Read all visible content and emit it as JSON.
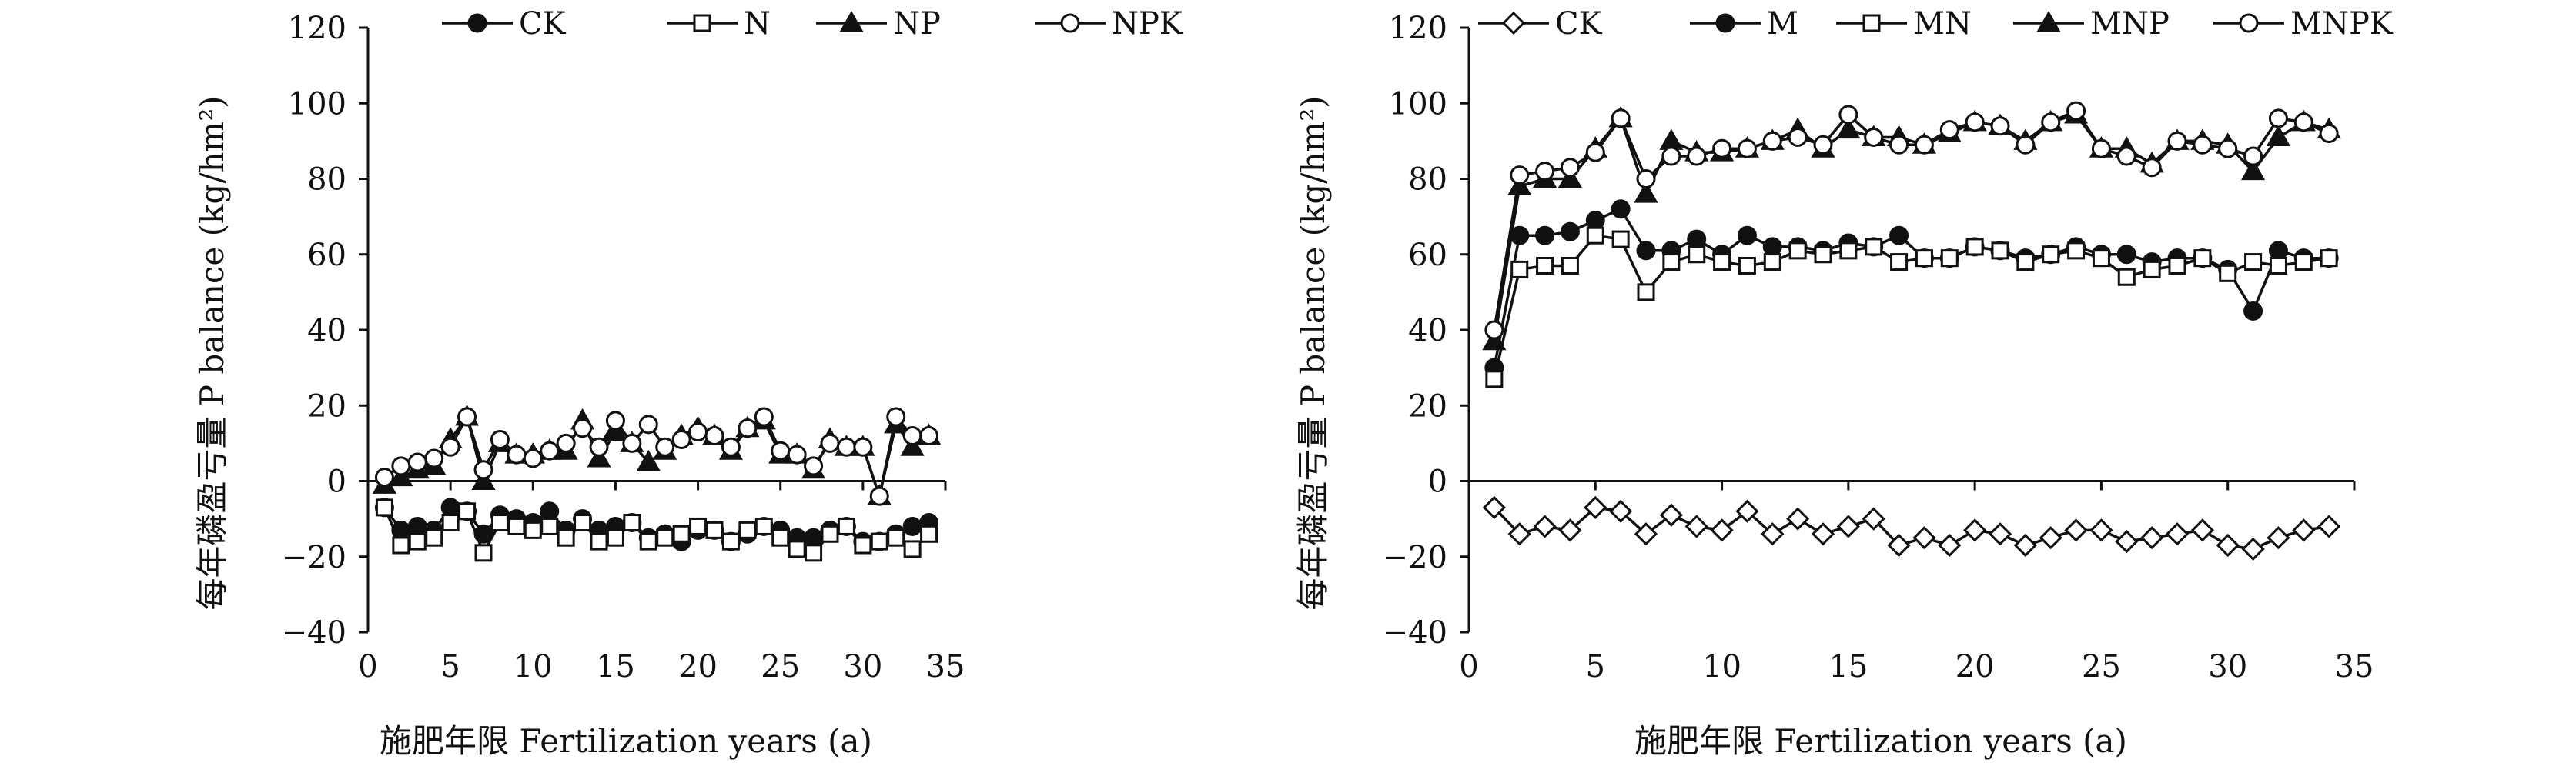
{
  "chart_data": [
    {
      "type": "line",
      "panel": "left",
      "title": "",
      "xlabel": "施肥年限 Fertilization years (a)",
      "ylabel": "每年磷盈亏量 P balance (kg/hm²)",
      "xlim": [
        0,
        35
      ],
      "ylim": [
        -40,
        120
      ],
      "xticks": [
        "0",
        "5",
        "10",
        "15",
        "20",
        "25",
        "30",
        "35"
      ],
      "yticks": [
        "120",
        "100",
        "80",
        "60",
        "40",
        "20",
        "0",
        "−20",
        "−40"
      ],
      "grid": false,
      "legend_position": "top",
      "x": [
        1,
        2,
        3,
        4,
        5,
        6,
        7,
        8,
        9,
        10,
        11,
        12,
        13,
        14,
        15,
        16,
        17,
        18,
        19,
        20,
        21,
        22,
        23,
        24,
        25,
        26,
        27,
        28,
        29,
        30,
        31,
        32,
        33,
        34
      ],
      "series": [
        {
          "name": "CK",
          "marker": "filled-circle",
          "values": [
            -7,
            -13,
            -12,
            -13,
            -7,
            -8,
            -14,
            -9,
            -10,
            -11,
            -8,
            -13,
            -10,
            -13,
            -12,
            -11,
            -15,
            -14,
            -16,
            -13,
            -13,
            -16,
            -14,
            -12,
            -13,
            -15,
            -15,
            -13,
            -12,
            -16,
            -16,
            -14,
            -12,
            -11
          ]
        },
        {
          "name": "N",
          "marker": "open-square",
          "values": [
            -7,
            -17,
            -16,
            -15,
            -11,
            -8,
            -19,
            -11,
            -12,
            -13,
            -12,
            -15,
            -11,
            -16,
            -15,
            -11,
            -16,
            -15,
            -14,
            -12,
            -13,
            -16,
            -13,
            -12,
            -15,
            -18,
            -19,
            -14,
            -12,
            -17,
            -16,
            -15,
            -18,
            -14
          ]
        },
        {
          "name": "NP",
          "marker": "filled-triangle",
          "values": [
            -1,
            1,
            3,
            4,
            11,
            17,
            0,
            10,
            7,
            7,
            8,
            8,
            16,
            6,
            13,
            10,
            5,
            8,
            12,
            14,
            12,
            8,
            14,
            16,
            7,
            7,
            3,
            11,
            9,
            9,
            -4,
            15,
            9,
            12
          ]
        },
        {
          "name": "NPK",
          "marker": "open-circle",
          "values": [
            1,
            4,
            5,
            6,
            9,
            17,
            3,
            11,
            7,
            6,
            8,
            10,
            14,
            9,
            16,
            10,
            15,
            9,
            11,
            13,
            12,
            9,
            14,
            17,
            8,
            7,
            4,
            10,
            9,
            9,
            -4,
            17,
            12,
            12
          ]
        }
      ]
    },
    {
      "type": "line",
      "panel": "right",
      "title": "",
      "xlabel": "施肥年限 Fertilization years (a)",
      "ylabel": "每年磷盈亏量 P balance (kg/hm²)",
      "xlim": [
        0,
        35
      ],
      "ylim": [
        -40,
        120
      ],
      "xticks": [
        "0",
        "5",
        "10",
        "15",
        "20",
        "25",
        "30",
        "35"
      ],
      "yticks": [
        "120",
        "100",
        "80",
        "60",
        "40",
        "20",
        "0",
        "−20",
        "−40"
      ],
      "grid": false,
      "legend_position": "top",
      "x": [
        1,
        2,
        3,
        4,
        5,
        6,
        7,
        8,
        9,
        10,
        11,
        12,
        13,
        14,
        15,
        16,
        17,
        18,
        19,
        20,
        21,
        22,
        23,
        24,
        25,
        26,
        27,
        28,
        29,
        30,
        31,
        32,
        33,
        34
      ],
      "series": [
        {
          "name": "CK",
          "marker": "open-diamond",
          "values": [
            -7,
            -14,
            -12,
            -13,
            -7,
            -8,
            -14,
            -9,
            -12,
            -13,
            -8,
            -14,
            -10,
            -14,
            -12,
            -10,
            -17,
            -15,
            -17,
            -13,
            -14,
            -17,
            -15,
            -13,
            -13,
            -16,
            -15,
            -14,
            -13,
            -17,
            -18,
            -15,
            -13,
            -12
          ]
        },
        {
          "name": "M",
          "marker": "filled-circle",
          "values": [
            30,
            65,
            65,
            66,
            69,
            72,
            61,
            61,
            64,
            60,
            65,
            62,
            62,
            61,
            63,
            62,
            65,
            59,
            59,
            62,
            61,
            59,
            60,
            62,
            60,
            60,
            58,
            59,
            59,
            56,
            45,
            61,
            59,
            59
          ]
        },
        {
          "name": "MN",
          "marker": "open-square",
          "values": [
            27,
            56,
            57,
            57,
            65,
            64,
            50,
            58,
            60,
            58,
            57,
            58,
            61,
            60,
            61,
            62,
            58,
            59,
            59,
            62,
            61,
            58,
            60,
            61,
            59,
            54,
            56,
            57,
            59,
            55,
            58,
            57,
            58,
            59
          ]
        },
        {
          "name": "MNP",
          "marker": "filled-triangle",
          "values": [
            37,
            78,
            80,
            80,
            88,
            96,
            76,
            90,
            87,
            87,
            88,
            90,
            93,
            88,
            93,
            91,
            91,
            89,
            92,
            95,
            94,
            90,
            95,
            97,
            88,
            88,
            84,
            90,
            90,
            89,
            82,
            91,
            95,
            93
          ]
        },
        {
          "name": "MNPK",
          "marker": "open-circle",
          "values": [
            40,
            81,
            82,
            83,
            87,
            96,
            80,
            86,
            86,
            88,
            88,
            90,
            91,
            89,
            97,
            91,
            89,
            89,
            93,
            95,
            94,
            89,
            95,
            98,
            88,
            86,
            83,
            90,
            89,
            88,
            86,
            96,
            95,
            92
          ]
        }
      ]
    }
  ]
}
